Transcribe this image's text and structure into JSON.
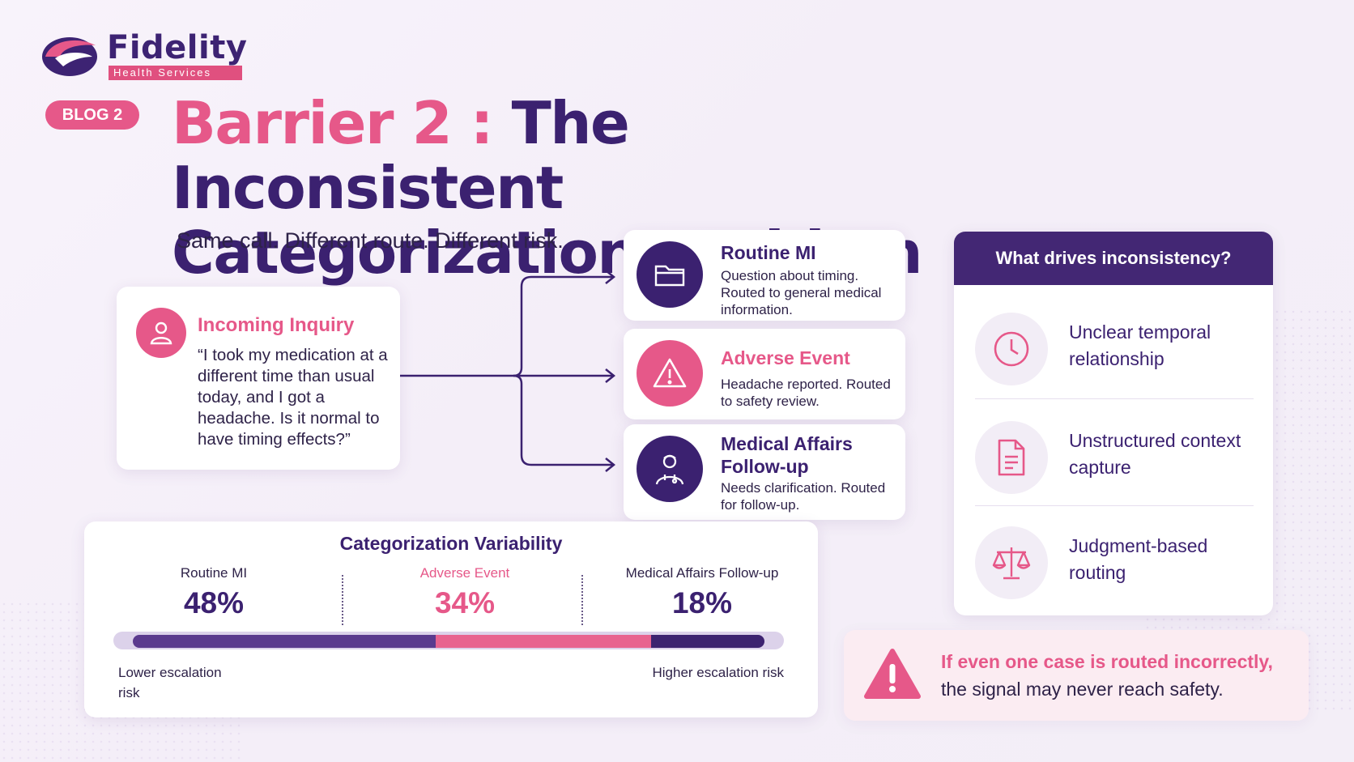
{
  "brand": {
    "name": "Fidelity",
    "tagline": "Health Services"
  },
  "badge": "BLOG 2",
  "title": {
    "accent": "Barrier 2 :",
    "line1_rest": " The Inconsistent",
    "line2": "Categorization Problem"
  },
  "subtitle": "Same call. Different route. Different risk.",
  "inquiry": {
    "title": "Incoming Inquiry",
    "icon": "user-icon",
    "text": "“I took my medication at a different time than usual today, and I got a headache. Is it normal to have timing effects?”"
  },
  "routes": [
    {
      "title": "Routine MI",
      "desc": "Question about timing. Routed to general medical information.",
      "icon": "folder-icon",
      "color": "#3b2170"
    },
    {
      "title": "Adverse Event",
      "desc": "Headache reported. Routed to safety review.",
      "icon": "warning-icon",
      "color": "#e65889"
    },
    {
      "title": "Medical Affairs Follow-up",
      "desc": "Needs clarification. Routed for follow-up.",
      "icon": "doctor-icon",
      "color": "#3b2170"
    }
  ],
  "drivers": {
    "heading": "What drives inconsistency?",
    "items": [
      {
        "label": "Unclear temporal relationship",
        "icon": "clock-icon"
      },
      {
        "label": "Unstructured context capture",
        "icon": "document-icon"
      },
      {
        "label": "Judgment-based routing",
        "icon": "scales-icon"
      }
    ]
  },
  "variability": {
    "title": "Categorization Variability",
    "segments": [
      {
        "label": "Routine MI",
        "value": "48%",
        "share": 0.48,
        "color": "#5b3a8e"
      },
      {
        "label": "Adverse Event",
        "value": "34%",
        "share": 0.34,
        "color": "#e8638f"
      },
      {
        "label": "Medical Affairs Follow-up",
        "value": "18%",
        "share": 0.18,
        "color": "#3d2370"
      }
    ],
    "low_label": "Lower escalation risk",
    "high_label": "Higher escalation risk"
  },
  "warning": {
    "line1": "If even one case is routed incorrectly,",
    "line2": "the signal may never reach safety."
  },
  "colors": {
    "accent_pink": "#e65889",
    "brand_purple": "#3b2170"
  }
}
